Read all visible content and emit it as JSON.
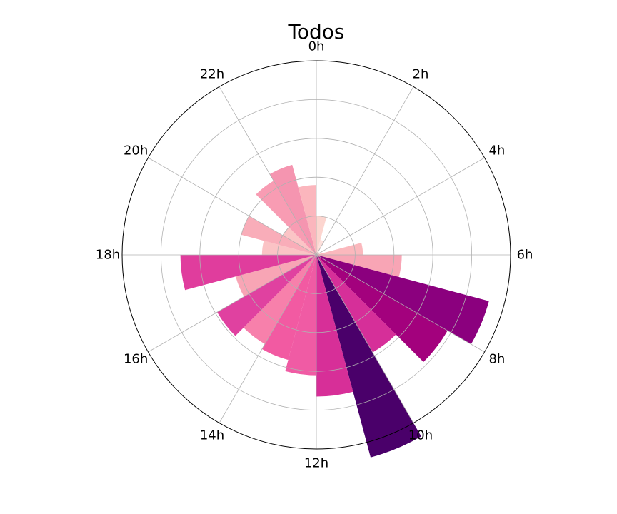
{
  "chart_data": {
    "type": "polar-bar",
    "title": "Todos",
    "theta_labels": [
      "0h",
      "2h",
      "4h",
      "6h",
      "8h",
      "10h",
      "12h",
      "14h",
      "16h",
      "18h",
      "20h",
      "22h"
    ],
    "radial_max": 1.0,
    "radial_grid": [
      0.2,
      0.4,
      0.6,
      0.8
    ],
    "grid": true,
    "bars": [
      {
        "hour": 0,
        "value": 0.2,
        "color": "#fcd5cf"
      },
      {
        "hour": 1,
        "value": 0.08,
        "color": "#fde0dc"
      },
      {
        "hour": 2,
        "value": 0.02,
        "color": "#feebe5"
      },
      {
        "hour": 3,
        "value": 0.02,
        "color": "#feebe5"
      },
      {
        "hour": 4,
        "value": 0.03,
        "color": "#fde6e0"
      },
      {
        "hour": 5,
        "value": 0.24,
        "color": "#fbb8bd"
      },
      {
        "hour": 6,
        "value": 0.44,
        "color": "#f8a5b5"
      },
      {
        "hour": 7,
        "value": 0.92,
        "color": "#8b007e"
      },
      {
        "hour": 8,
        "value": 0.78,
        "color": "#a3017d"
      },
      {
        "hour": 9,
        "value": 0.58,
        "color": "#d62f99"
      },
      {
        "hour": 10,
        "value": 1.08,
        "color": "#4a006a"
      },
      {
        "hour": 11,
        "value": 0.73,
        "color": "#d72f98"
      },
      {
        "hour": 12,
        "value": 0.62,
        "color": "#f05ba4"
      },
      {
        "hour": 13,
        "value": 0.56,
        "color": "#f25aa2"
      },
      {
        "hour": 14,
        "value": 0.53,
        "color": "#f780ab"
      },
      {
        "hour": 15,
        "value": 0.59,
        "color": "#e041a0"
      },
      {
        "hour": 16,
        "value": 0.43,
        "color": "#f8a5b5"
      },
      {
        "hour": 17,
        "value": 0.7,
        "color": "#e03d9d"
      },
      {
        "hour": 18,
        "value": 0.28,
        "color": "#fbc3c5"
      },
      {
        "hour": 19,
        "value": 0.4,
        "color": "#f9adb9"
      },
      {
        "hour": 20,
        "value": 0.2,
        "color": "#fbc4c6"
      },
      {
        "hour": 21,
        "value": 0.44,
        "color": "#f89cb3"
      },
      {
        "hour": 22,
        "value": 0.48,
        "color": "#f595b0"
      },
      {
        "hour": 23,
        "value": 0.36,
        "color": "#fbb6bd"
      }
    ]
  }
}
